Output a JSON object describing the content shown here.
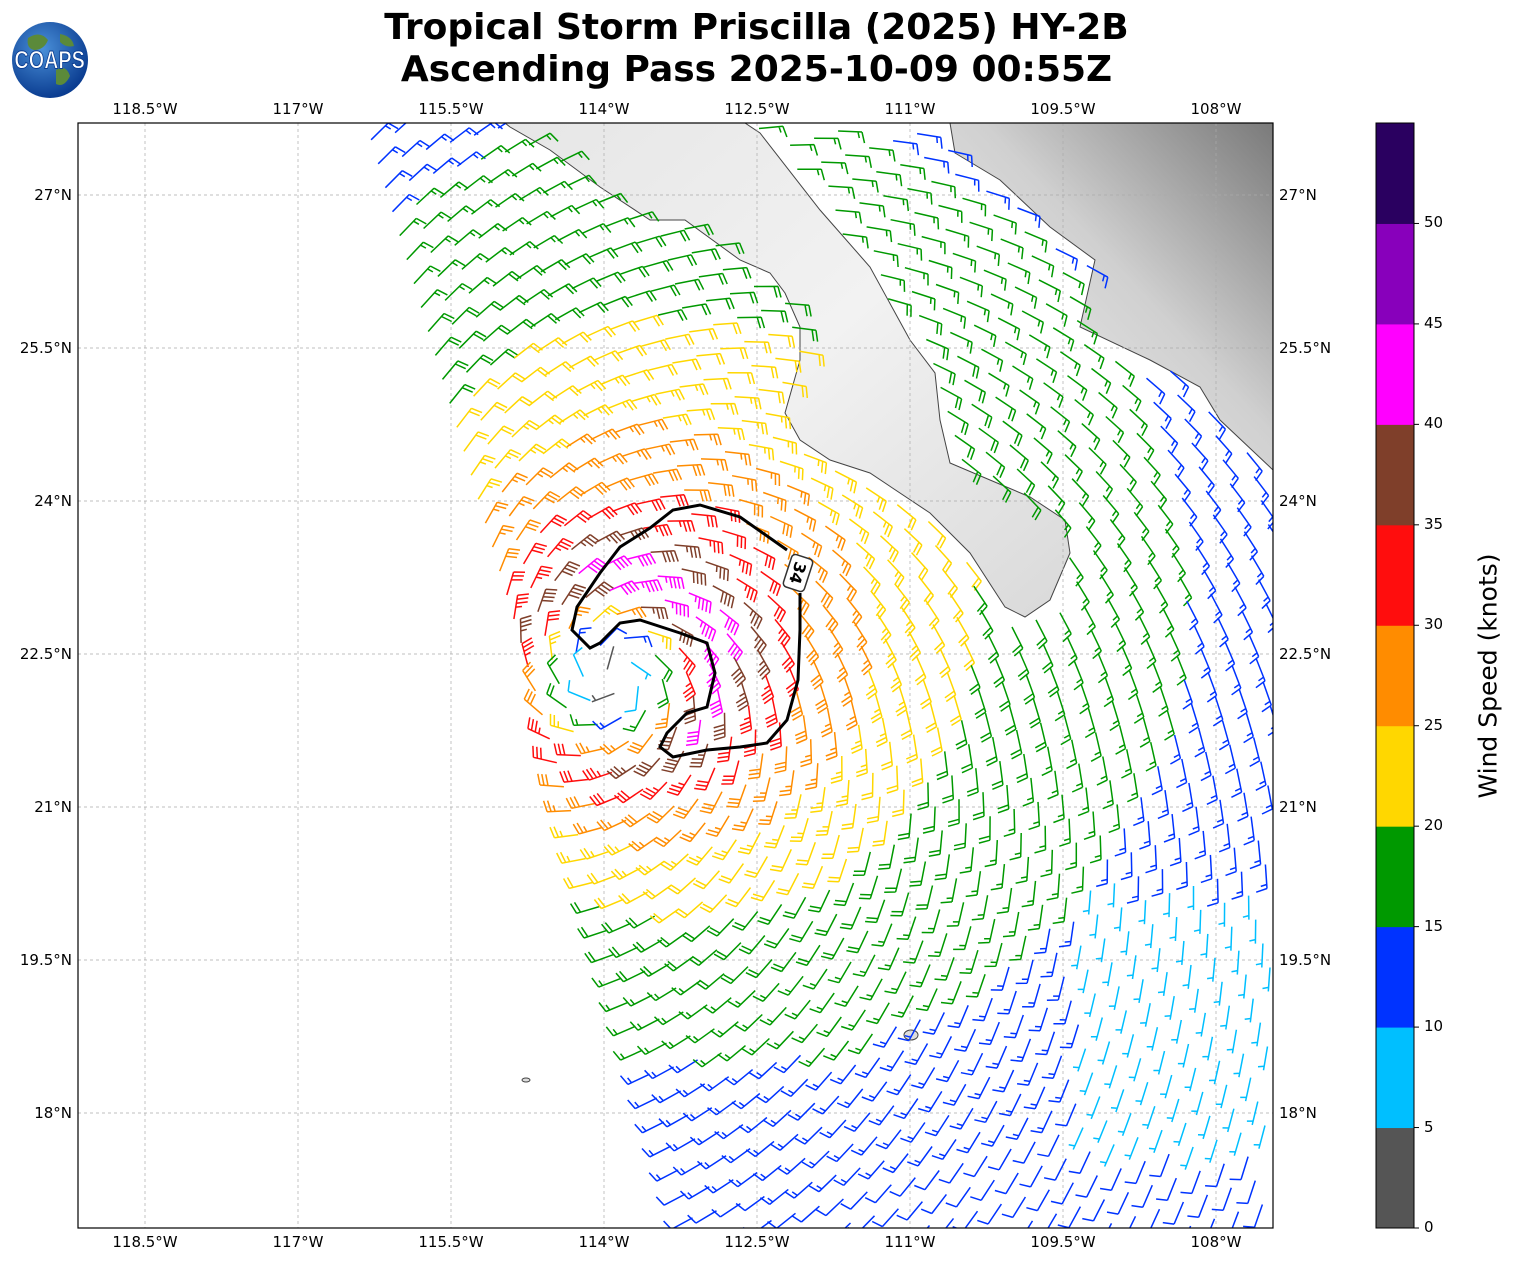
{
  "title": {
    "line1": "Tropical Storm Priscilla (2025) HY-2B",
    "line2": "Ascending Pass 2025-10-09 00:55Z"
  },
  "logo": {
    "text": "COAPS"
  },
  "map": {
    "lon_ticks": [
      "118.5°W",
      "117°W",
      "115.5°W",
      "114°W",
      "112.5°W",
      "111°W",
      "109.5°W",
      "108°W"
    ],
    "lat_ticks": [
      "27°N",
      "25.5°N",
      "24°N",
      "22.5°N",
      "21°N",
      "19.5°N",
      "18°N"
    ],
    "contour_label": "34"
  },
  "colorbar": {
    "label": "Wind Speed (knots)",
    "ticks": [
      "0",
      "5",
      "10",
      "15",
      "20",
      "25",
      "30",
      "35",
      "40",
      "45",
      "50"
    ],
    "colors": [
      "#555555",
      "#00bfff",
      "#0033ff",
      "#009900",
      "#ffd700",
      "#ff8c00",
      "#ff0d0d",
      "#7f3f2a",
      "#ff00ff",
      "#8800bb",
      "#2a0060"
    ]
  },
  "chart_data": {
    "type": "wind-barb-map",
    "lon_range": [
      -119.16,
      -107.45
    ],
    "lat_range": [
      16.87,
      27.7
    ],
    "storm_center": {
      "lon": -113.9,
      "lat": 22.3
    },
    "max_wind_kt": 41,
    "radius_max_wind_deg": 0.9,
    "contour_kt": 34,
    "bin_edges_kt": [
      0,
      5,
      10,
      15,
      20,
      25,
      30,
      35,
      40,
      45,
      50,
      55
    ]
  }
}
